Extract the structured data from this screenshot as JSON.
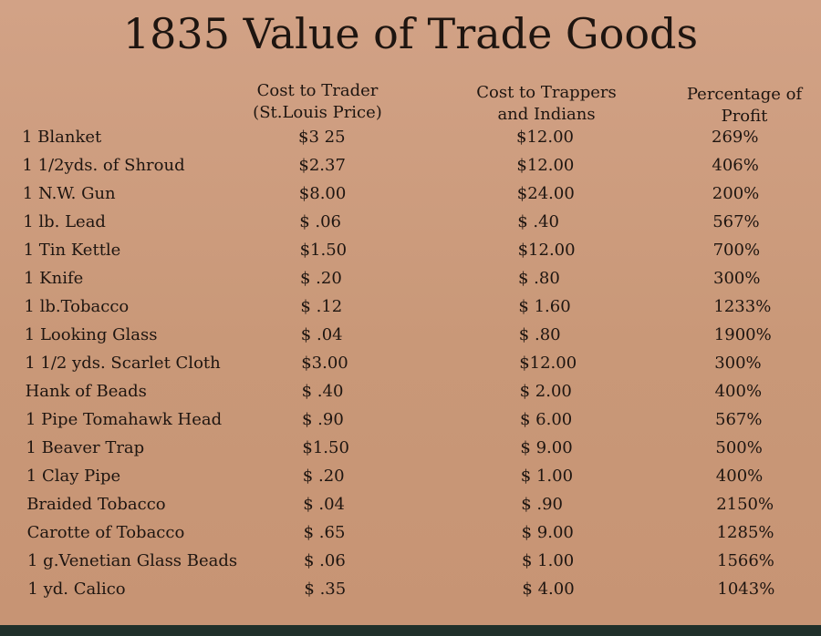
{
  "title": "1835 Value of Trade Goods",
  "headers": {
    "cost_to_trader": [
      "Cost to Trader",
      "(St.Louis Price)"
    ],
    "cost_to_trappers": [
      "Cost to Trappers",
      "and Indians"
    ],
    "percentage_of_profit": [
      "Percentage of",
      "Profit"
    ]
  },
  "rows": [
    {
      "item": "1 Blanket",
      "cost": "$3 25",
      "price": "$12.00",
      "profit": "269%"
    },
    {
      "item": "1 1/2yds. of Shroud",
      "cost": "$2.37",
      "price": "$12.00",
      "profit": "406%"
    },
    {
      "item": "1 N.W. Gun",
      "cost": "$8.00",
      "price": "$24.00",
      "profit": "200%"
    },
    {
      "item": "1 lb. Lead",
      "cost": "$ .06",
      "price": "$ .40",
      "profit": "567%"
    },
    {
      "item": "1 Tin Kettle",
      "cost": "$1.50",
      "price": "$12.00",
      "profit": "700%"
    },
    {
      "item": "1 Knife",
      "cost": "$ .20",
      "price": "$ .80",
      "profit": "300%"
    },
    {
      "item": "1 lb.Tobacco",
      "cost": "$ .12",
      "price": "$ 1.60",
      "profit": "1233%"
    },
    {
      "item": "1 Looking Glass",
      "cost": "$ .04",
      "price": "$ .80",
      "profit": "1900%"
    },
    {
      "item": "1 1/2 yds. Scarlet Cloth",
      "cost": "$3.00",
      "price": "$12.00",
      "profit": "300%"
    },
    {
      "item": "Hank of Beads",
      "cost": "$ .40",
      "price": "$ 2.00",
      "profit": "400%"
    },
    {
      "item": "1 Pipe Tomahawk Head",
      "cost": "$ .90",
      "price": "$ 6.00",
      "profit": "567%"
    },
    {
      "item": "1 Beaver Trap",
      "cost": "$1.50",
      "price": "$ 9.00",
      "profit": "500%"
    },
    {
      "item": "1 Clay Pipe",
      "cost": "$ .20",
      "price": "$ 1.00",
      "profit": "400%"
    },
    {
      "item": "Braided Tobacco",
      "cost": "$ .04",
      "price": "$ .90",
      "profit": "2150%"
    },
    {
      "item": "Carotte of Tobacco",
      "cost": "$ .65",
      "price": "$ 9.00",
      "profit": "1285%"
    },
    {
      "item": "1 g.Venetian Glass Beads",
      "cost": "$ .06",
      "price": "$ 1.00",
      "profit": "1566%"
    },
    {
      "item": "1 yd. Calico",
      "cost": "$ .35",
      "price": "$ 4.00",
      "profit": "1043%"
    }
  ]
}
